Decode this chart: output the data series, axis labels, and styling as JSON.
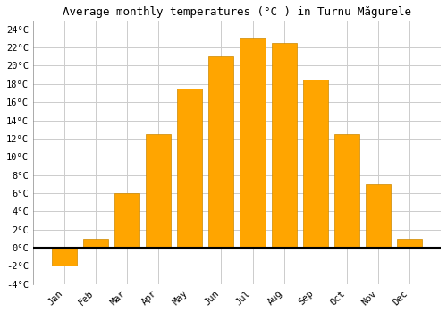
{
  "months": [
    "Jan",
    "Feb",
    "Mar",
    "Apr",
    "May",
    "Jun",
    "Jul",
    "Aug",
    "Sep",
    "Oct",
    "Nov",
    "Dec"
  ],
  "temperatures": [
    -2.0,
    1.0,
    6.0,
    12.5,
    17.5,
    21.0,
    23.0,
    22.5,
    18.5,
    12.5,
    7.0,
    1.0
  ],
  "bar_color": "#FFA500",
  "bar_edge_color": "#CC8800",
  "title": "Average monthly temperatures (°C ) in Turnu Măgurele",
  "ylim": [
    -4,
    25
  ],
  "yticks": [
    -4,
    -2,
    0,
    2,
    4,
    6,
    8,
    10,
    12,
    14,
    16,
    18,
    20,
    22,
    24
  ],
  "grid_color": "#cccccc",
  "background_color": "#ffffff",
  "title_fontsize": 9,
  "tick_fontsize": 7.5,
  "font_family": "monospace"
}
